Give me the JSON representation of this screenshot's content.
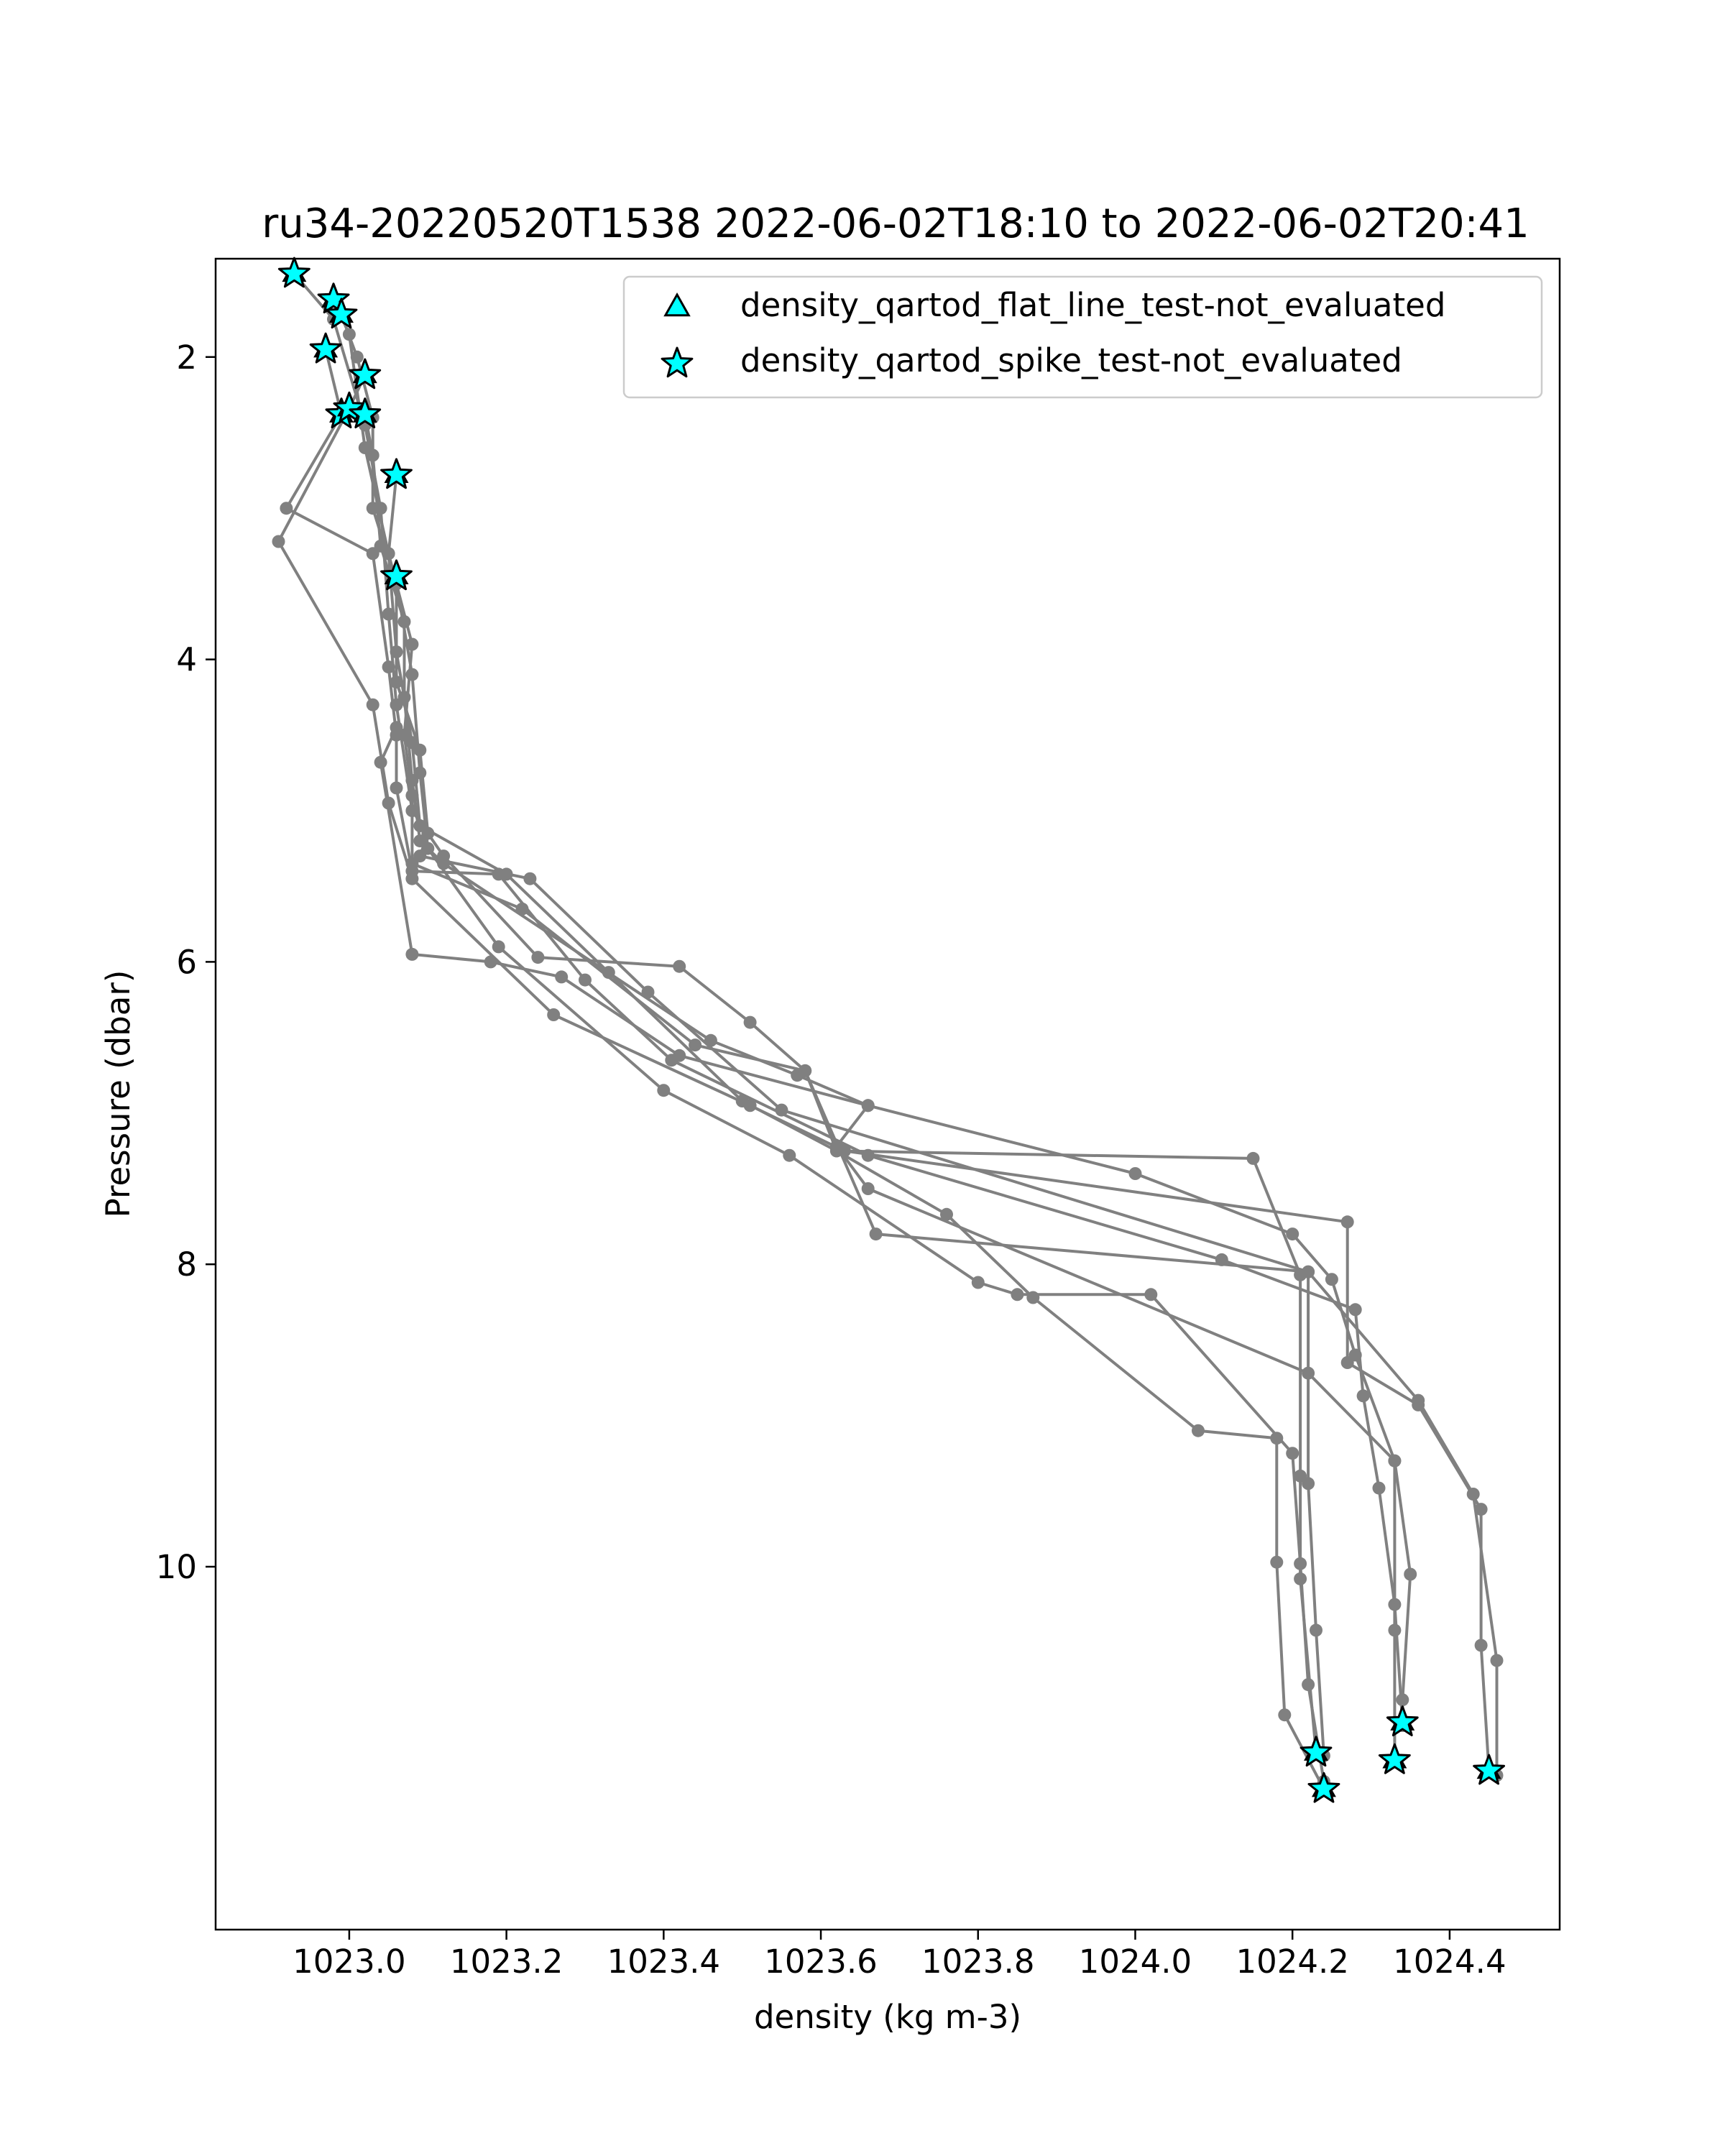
{
  "chart_data": {
    "type": "line",
    "title": "ru34-20220520T1538 2022-06-02T18:10 to 2022-06-02T20:41",
    "xlabel": "density (kg m-3)",
    "ylabel": "Pressure (dbar)",
    "xlim": [
      1022.83,
      1024.54
    ],
    "ylim": [
      12.4,
      1.35
    ],
    "y_inverted": true,
    "xticks": [
      {
        "value": 1023.0,
        "label": "1023.0"
      },
      {
        "value": 1023.2,
        "label": "1023.2"
      },
      {
        "value": 1023.4,
        "label": "1023.4"
      },
      {
        "value": 1023.6,
        "label": "1023.6"
      },
      {
        "value": 1023.8,
        "label": "1023.8"
      },
      {
        "value": 1024.0,
        "label": "1024.0"
      },
      {
        "value": 1024.2,
        "label": "1024.2"
      },
      {
        "value": 1024.4,
        "label": "1024.4"
      }
    ],
    "yticks": [
      {
        "value": 2,
        "label": "2"
      },
      {
        "value": 4,
        "label": "4"
      },
      {
        "value": 6,
        "label": "6"
      },
      {
        "value": 8,
        "label": "8"
      },
      {
        "value": 10,
        "label": "10"
      }
    ],
    "grid": false,
    "line_color": "#808080",
    "marker_color": "#808080",
    "flag_color": "#00ffff",
    "legend": {
      "placement": "top-right",
      "entries": [
        {
          "marker": "triangle",
          "label": "density_qartod_flat_line_test-not_evaluated"
        },
        {
          "marker": "star",
          "label": "density_qartod_spike_test-not_evaluated"
        }
      ]
    },
    "series": [
      {
        "name": "profile-1",
        "points": [
          [
            1022.93,
            1.45
          ],
          [
            1022.98,
            1.75
          ],
          [
            1023.02,
            2.45
          ],
          [
            1023.04,
            3.0
          ],
          [
            1023.05,
            3.7
          ],
          [
            1023.06,
            4.3
          ],
          [
            1023.08,
            5.0
          ],
          [
            1023.12,
            5.3
          ],
          [
            1023.24,
            5.97
          ],
          [
            1023.42,
            6.03
          ],
          [
            1023.51,
            6.4
          ],
          [
            1023.58,
            6.72
          ],
          [
            1023.62,
            7.25
          ],
          [
            1023.76,
            7.67
          ],
          [
            1023.87,
            8.22
          ],
          [
            1024.08,
            9.1
          ],
          [
            1024.18,
            9.15
          ],
          [
            1024.18,
            9.97
          ],
          [
            1024.19,
            10.98
          ],
          [
            1024.24,
            11.47
          ]
        ]
      },
      {
        "name": "profile-2",
        "points": [
          [
            1022.98,
            1.62
          ],
          [
            1023.0,
            1.85
          ],
          [
            1023.02,
            2.6
          ],
          [
            1023.05,
            3.3
          ],
          [
            1023.06,
            3.95
          ],
          [
            1023.08,
            4.55
          ],
          [
            1023.09,
            5.1
          ],
          [
            1023.2,
            5.42
          ],
          [
            1023.33,
            6.07
          ],
          [
            1023.5,
            6.92
          ],
          [
            1023.62,
            7.25
          ],
          [
            1024.15,
            7.3
          ],
          [
            1024.21,
            8.07
          ],
          [
            1024.21,
            9.4
          ],
          [
            1024.21,
            10.08
          ],
          [
            1024.23,
            11.23
          ]
        ]
      },
      {
        "name": "profile-3",
        "points": [
          [
            1022.99,
            1.72
          ],
          [
            1023.01,
            2.0
          ],
          [
            1023.03,
            2.4
          ],
          [
            1023.03,
            3.0
          ],
          [
            1023.06,
            3.5
          ],
          [
            1023.08,
            4.1
          ],
          [
            1023.09,
            4.75
          ],
          [
            1023.1,
            5.25
          ],
          [
            1023.19,
            5.9
          ],
          [
            1023.4,
            6.85
          ],
          [
            1023.56,
            7.28
          ],
          [
            1023.8,
            8.12
          ],
          [
            1023.85,
            8.2
          ],
          [
            1024.02,
            8.2
          ],
          [
            1024.2,
            9.25
          ],
          [
            1024.21,
            9.98
          ],
          [
            1024.22,
            10.78
          ],
          [
            1024.24,
            11.42
          ]
        ]
      },
      {
        "name": "profile-4",
        "points": [
          [
            1022.97,
            1.95
          ],
          [
            1022.99,
            2.38
          ],
          [
            1022.92,
            3.0
          ],
          [
            1023.03,
            3.3
          ],
          [
            1023.05,
            4.05
          ],
          [
            1023.06,
            4.5
          ],
          [
            1023.06,
            4.85
          ],
          [
            1023.08,
            5.4
          ],
          [
            1023.19,
            5.42
          ],
          [
            1023.3,
            6.12
          ],
          [
            1023.41,
            6.65
          ],
          [
            1023.66,
            7.28
          ],
          [
            1024.11,
            7.97
          ],
          [
            1024.28,
            8.3
          ],
          [
            1024.29,
            8.87
          ],
          [
            1024.31,
            9.48
          ],
          [
            1024.33,
            10.25
          ],
          [
            1024.34,
            11.03
          ]
        ]
      },
      {
        "name": "profile-5",
        "points": [
          [
            1023.02,
            2.12
          ],
          [
            1023.0,
            2.34
          ],
          [
            1022.91,
            3.22
          ],
          [
            1023.03,
            4.3
          ],
          [
            1023.05,
            4.95
          ],
          [
            1023.08,
            5.45
          ],
          [
            1023.26,
            6.35
          ],
          [
            1023.51,
            6.95
          ],
          [
            1023.63,
            7.25
          ],
          [
            1024.27,
            7.72
          ],
          [
            1024.27,
            8.65
          ],
          [
            1024.36,
            8.93
          ],
          [
            1024.44,
            9.62
          ],
          [
            1024.44,
            10.52
          ],
          [
            1024.45,
            11.35
          ]
        ]
      },
      {
        "name": "profile-6",
        "points": [
          [
            1023.02,
            2.38
          ],
          [
            1023.03,
            2.65
          ],
          [
            1023.04,
            3.25
          ],
          [
            1023.07,
            3.75
          ],
          [
            1023.07,
            4.25
          ],
          [
            1023.08,
            4.8
          ],
          [
            1023.09,
            5.2
          ],
          [
            1023.12,
            5.35
          ],
          [
            1023.46,
            6.52
          ],
          [
            1023.57,
            6.75
          ],
          [
            1023.66,
            6.95
          ],
          [
            1023.62,
            7.22
          ],
          [
            1023.66,
            7.5
          ],
          [
            1024.22,
            8.72
          ],
          [
            1024.33,
            9.3
          ],
          [
            1024.33,
            10.42
          ],
          [
            1024.33,
            11.28
          ]
        ]
      },
      {
        "name": "profile-7",
        "points": [
          [
            1023.06,
            2.78
          ],
          [
            1023.05,
            3.3
          ],
          [
            1023.08,
            3.9
          ],
          [
            1023.07,
            4.5
          ],
          [
            1023.08,
            4.9
          ],
          [
            1023.08,
            5.35
          ],
          [
            1023.22,
            5.65
          ],
          [
            1023.44,
            6.55
          ],
          [
            1023.58,
            6.72
          ],
          [
            1023.67,
            7.8
          ],
          [
            1024.22,
            8.05
          ],
          [
            1024.22,
            9.45
          ],
          [
            1024.23,
            10.42
          ],
          [
            1024.24,
            11.25
          ]
        ]
      },
      {
        "name": "profile-8",
        "points": [
          [
            1023.06,
            3.45
          ],
          [
            1023.06,
            4.15
          ],
          [
            1023.09,
            4.6
          ],
          [
            1023.1,
            5.15
          ],
          [
            1023.09,
            5.3
          ],
          [
            1023.23,
            5.45
          ],
          [
            1023.38,
            6.2
          ],
          [
            1023.55,
            6.98
          ],
          [
            1024.22,
            8.05
          ],
          [
            1024.36,
            8.9
          ],
          [
            1024.43,
            9.52
          ],
          [
            1024.46,
            10.62
          ],
          [
            1024.46,
            11.38
          ]
        ]
      },
      {
        "name": "profile-9",
        "points": [
          [
            1023.06,
            4.45
          ],
          [
            1023.04,
            4.68
          ],
          [
            1023.08,
            5.95
          ],
          [
            1023.18,
            6.0
          ],
          [
            1023.27,
            6.1
          ],
          [
            1023.42,
            6.62
          ],
          [
            1023.66,
            6.95
          ],
          [
            1024.0,
            7.4
          ],
          [
            1024.2,
            7.8
          ],
          [
            1024.25,
            8.1
          ],
          [
            1024.28,
            8.6
          ],
          [
            1024.33,
            9.3
          ],
          [
            1024.35,
            10.05
          ],
          [
            1024.34,
            10.88
          ],
          [
            1024.34,
            11.05
          ]
        ]
      }
    ],
    "flagged_points": [
      [
        1022.93,
        1.45
      ],
      [
        1022.98,
        1.62
      ],
      [
        1022.99,
        1.72
      ],
      [
        1022.97,
        1.95
      ],
      [
        1023.02,
        2.12
      ],
      [
        1022.99,
        2.38
      ],
      [
        1023.0,
        2.34
      ],
      [
        1023.02,
        2.38
      ],
      [
        1023.06,
        2.78
      ],
      [
        1023.06,
        3.45
      ],
      [
        1024.34,
        11.03
      ],
      [
        1024.23,
        11.23
      ],
      [
        1024.33,
        11.28
      ],
      [
        1024.45,
        11.35
      ],
      [
        1024.24,
        11.47
      ]
    ]
  }
}
